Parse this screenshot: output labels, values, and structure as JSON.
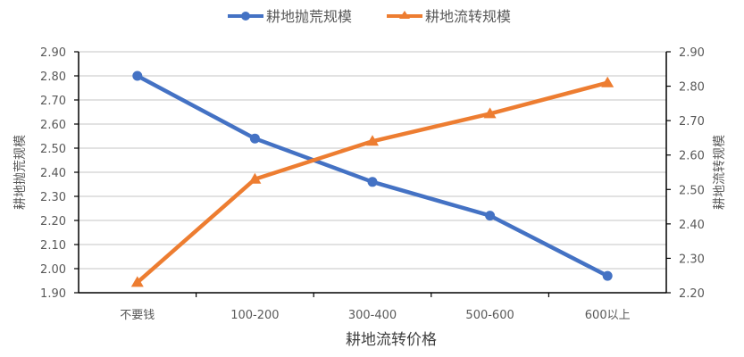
{
  "chart_data": {
    "type": "line",
    "title": "",
    "categories": [
      "不要钱",
      "100-200",
      "300-400",
      "500-600",
      "600以上"
    ],
    "xlabel": "耕地流转价格",
    "ylabel": "耕地抛荒规模",
    "y2label": "耕地流转规模",
    "ylim": [
      1.9,
      2.9
    ],
    "y2lim": [
      2.2,
      2.9
    ],
    "yticks": [
      "1.90",
      "2.00",
      "2.10",
      "2.20",
      "2.30",
      "2.40",
      "2.50",
      "2.60",
      "2.70",
      "2.80",
      "2.90"
    ],
    "y2ticks": [
      "2.20",
      "2.30",
      "2.40",
      "2.50",
      "2.60",
      "2.70",
      "2.80",
      "2.90"
    ],
    "grid": true,
    "legend_position": "top",
    "series": [
      {
        "name": "耕地抛荒规模",
        "axis": "left",
        "color": "#4472C4",
        "marker": "circle",
        "values": [
          2.8,
          2.54,
          2.36,
          2.22,
          1.97
        ]
      },
      {
        "name": "耕地流转规模",
        "axis": "right",
        "color": "#ED7D31",
        "marker": "triangle",
        "values": [
          2.23,
          2.53,
          2.64,
          2.72,
          2.81
        ]
      }
    ]
  },
  "legend": {
    "items": [
      {
        "label": "耕地抛荒规模"
      },
      {
        "label": "耕地流转规模"
      }
    ]
  }
}
